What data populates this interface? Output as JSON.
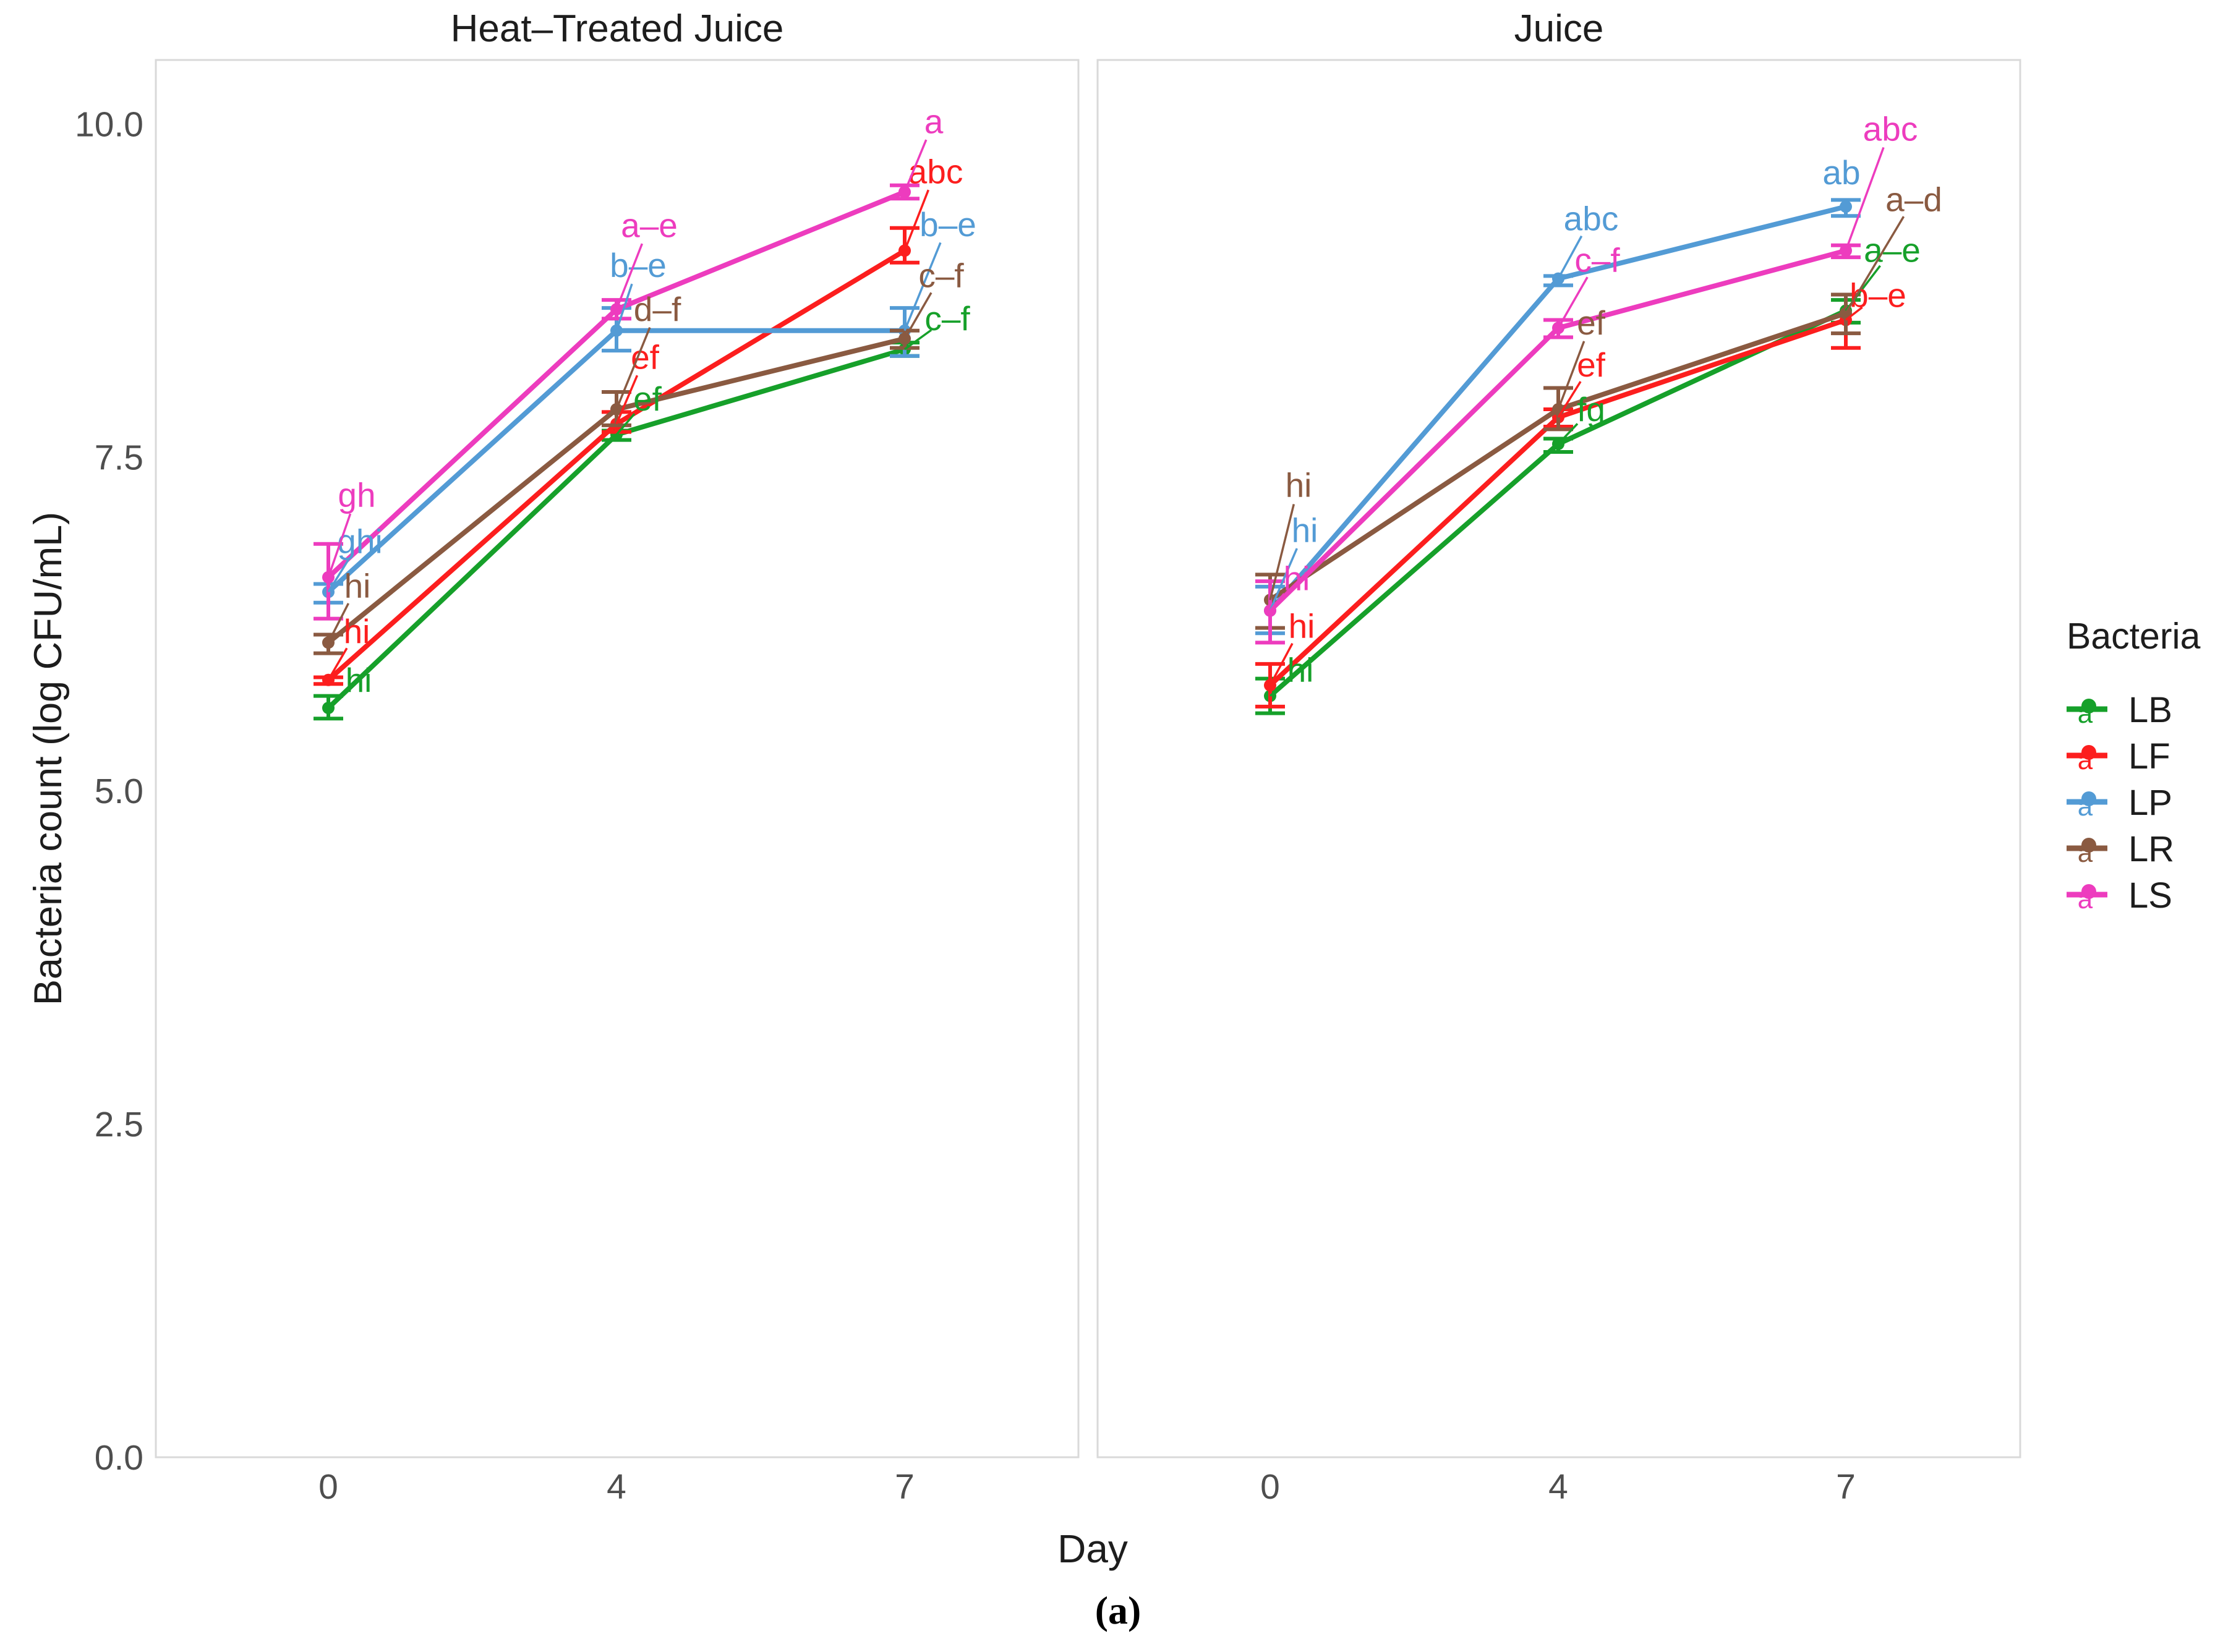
{
  "page": {
    "caption": "(a)"
  },
  "chart_data": {
    "type": "line",
    "xlabel": "Day",
    "ylabel": "Bacteria count (log CFU/mL)",
    "x_categories": [
      "0",
      "4",
      "7"
    ],
    "yticks": [
      0.0,
      2.5,
      5.0,
      7.5,
      10.0
    ],
    "ylim": [
      0,
      10.48
    ],
    "grid": "off",
    "legend_title": "Bacteria",
    "legend_position": "right",
    "legend_key_letter": "a",
    "series_order": [
      "LB",
      "LF",
      "LP",
      "LR",
      "LS"
    ],
    "series_colors": {
      "LB": "#16a02a",
      "LF": "#fc1e1e",
      "LP": "#539bd5",
      "LR": "#8a5a41",
      "LS": "#ed3cbe"
    },
    "axis_text_color": "#4e4e4e",
    "panel_border_color": "#d9d9d9",
    "facets": [
      {
        "title": "Heat–Treated Juice",
        "series": [
          {
            "name": "LB",
            "values": [
              5.62,
              7.67,
              8.31
            ],
            "err_lo": [
              5.54,
              7.63,
              8.26
            ],
            "err_hi": [
              5.71,
              7.7,
              8.36
            ],
            "sig_labels": [
              "hi",
              "ef",
              "c–f"
            ],
            "label_offsets": [
              [
                49,
                -45
              ],
              [
                50,
                -58
              ],
              [
                69,
                -50
              ]
            ]
          },
          {
            "name": "LF",
            "values": [
              5.83,
              7.75,
              9.05
            ],
            "err_lo": [
              5.8,
              7.69,
              8.96
            ],
            "err_hi": [
              5.85,
              7.84,
              9.22
            ],
            "sig_labels": [
              "hi",
              "ef",
              "abc"
            ],
            "label_offsets": [
              [
                46,
                -79
              ],
              [
                46,
                -108
              ],
              [
                50,
                -128
              ]
            ]
          },
          {
            "name": "LP",
            "values": [
              6.49,
              8.45,
              8.45
            ],
            "err_lo": [
              6.41,
              8.3,
              8.26
            ],
            "err_hi": [
              6.55,
              8.62,
              8.62
            ],
            "sig_labels": [
              "ghi",
              "b–e",
              "b–e"
            ],
            "label_offsets": [
              [
                51,
                -82
              ],
              [
                35,
                -106
              ],
              [
                70,
                -172
              ]
            ]
          },
          {
            "name": "LR",
            "values": [
              6.11,
              7.86,
              8.39
            ],
            "err_lo": [
              6.03,
              7.74,
              8.32
            ],
            "err_hi": [
              6.17,
              7.99,
              8.45
            ],
            "sig_labels": [
              "hi",
              "d–f",
              "c–f"
            ],
            "label_offsets": [
              [
                47,
                -92
              ],
              [
                66,
                -162
              ],
              [
                59,
                -102
              ]
            ]
          },
          {
            "name": "LS",
            "values": [
              6.6,
              8.61,
              9.49
            ],
            "err_lo": [
              6.29,
              8.54,
              9.44
            ],
            "err_hi": [
              6.85,
              8.68,
              9.54
            ],
            "sig_labels": [
              "gh",
              "a–e",
              "a"
            ],
            "label_offsets": [
              [
                46,
                -133
              ],
              [
                53,
                -136
              ],
              [
                47,
                -114
              ]
            ]
          }
        ]
      },
      {
        "title": "Juice",
        "series": [
          {
            "name": "LB",
            "values": [
              5.71,
              7.6,
              8.6
            ],
            "err_lo": [
              5.58,
              7.54,
              8.51
            ],
            "err_hi": [
              5.84,
              7.64,
              8.68
            ],
            "sig_labels": [
              "hi",
              "fg",
              "a–e"
            ],
            "label_offsets": [
              [
                49,
                -42
              ],
              [
                53,
                -56
              ],
              [
                75,
                -98
              ]
            ]
          },
          {
            "name": "LF",
            "values": [
              5.79,
              7.8,
              8.53
            ],
            "err_lo": [
              5.63,
              7.73,
              8.32
            ],
            "err_hi": [
              5.95,
              7.86,
              8.72
            ],
            "sig_labels": [
              "hi",
              "ef",
              "b–e"
            ],
            "label_offsets": [
              [
                51,
                -96
              ],
              [
                53,
                -85
              ],
              [
                52,
                -40
              ]
            ]
          },
          {
            "name": "LP",
            "values": [
              6.35,
              8.84,
              9.38
            ],
            "err_lo": [
              6.18,
              8.79,
              9.31
            ],
            "err_hi": [
              6.53,
              8.86,
              9.43
            ],
            "sig_labels": [
              "hi",
              "abc",
              "ab"
            ],
            "label_offsets": [
              [
                56,
                -130
              ],
              [
                53,
                -97
              ],
              [
                -7,
                -55
              ]
            ]
          },
          {
            "name": "LR",
            "values": [
              6.43,
              7.86,
              8.58
            ],
            "err_lo": [
              6.22,
              7.71,
              8.43
            ],
            "err_hi": [
              6.62,
              8.02,
              8.72
            ],
            "sig_labels": [
              "hi",
              "ef",
              "a–d"
            ],
            "label_offsets": [
              [
                46,
                -186
              ],
              [
                53,
                -140
              ],
              [
                110,
                -184
              ]
            ]
          },
          {
            "name": "LS",
            "values": [
              6.35,
              8.47,
              9.05
            ],
            "err_lo": [
              6.11,
              8.4,
              9.0
            ],
            "err_hi": [
              6.57,
              8.53,
              9.09
            ],
            "sig_labels": [
              "hi",
              "c–f",
              "abc"
            ],
            "label_offsets": [
              [
                43,
                -52
              ],
              [
                63,
                -110
              ],
              [
                72,
                -197
              ]
            ]
          }
        ]
      }
    ]
  }
}
